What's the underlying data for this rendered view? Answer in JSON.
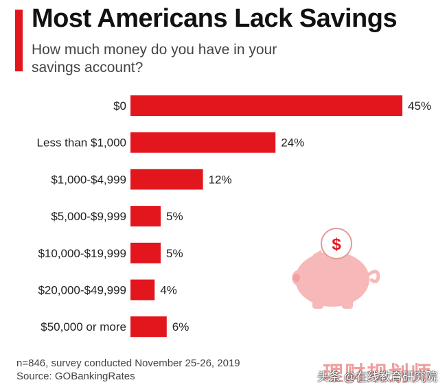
{
  "title": "Most Americans Lack Savings",
  "subtitle": "How much money do you have in your savings account?",
  "footer": {
    "note": "n=846, survey conducted November 25-26, 2019",
    "source": "Source: GOBankingRates"
  },
  "watermark": {
    "chinese_overlay": "理财规划师",
    "account": "头条 @在线教育研究院"
  },
  "colors": {
    "accent": "#e3161e",
    "bar": "#e3161e",
    "piggy": "#f6b8b8"
  },
  "icons": {
    "illustration": "piggy-bank-icon",
    "coin": "dollar-coin-icon"
  },
  "chart_data": {
    "type": "bar",
    "orientation": "horizontal",
    "categories": [
      "$0",
      "Less than $1,000",
      "$1,000-$4,999",
      "$5,000-$9,999",
      "$10,000-$19,999",
      "$20,000-$49,999",
      "$50,000 or more"
    ],
    "values": [
      45,
      24,
      12,
      5,
      5,
      4,
      6
    ],
    "value_labels": [
      "45%",
      "24%",
      "12%",
      "5%",
      "5%",
      "4%",
      "6%"
    ],
    "unit": "%",
    "xlim": [
      0,
      45
    ],
    "grid": false,
    "legend": "none"
  }
}
